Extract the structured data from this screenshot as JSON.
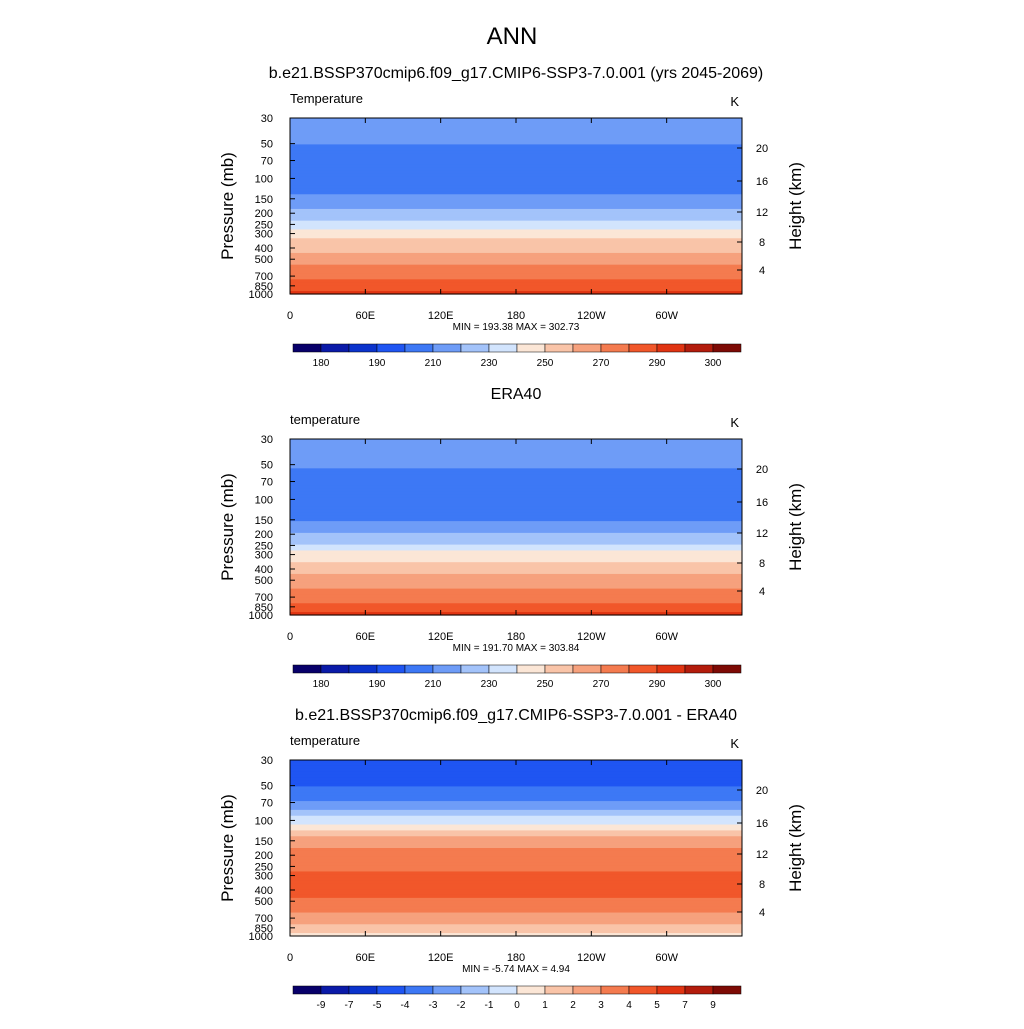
{
  "figure_title": "ANN",
  "panels": [
    {
      "title": "b.e21.BSSP370cmip6.f09_g17.CMIP6-SSP3-7.0.001 (yrs 2045-2069)",
      "left_label": "Temperature",
      "units": "K",
      "ylabel_left": "Pressure (mb)",
      "ylabel_right": "Height (km)",
      "x_ticks": [
        "0",
        "60E",
        "120E",
        "180",
        "120W",
        "60W"
      ],
      "y_ticks": [
        "30",
        "50",
        "70",
        "100",
        "150",
        "200",
        "250",
        "300",
        "400",
        "500",
        "700",
        "850",
        "1000"
      ],
      "height_ticks": [
        "20",
        "16",
        "12",
        "8",
        "4"
      ],
      "stats": "MIN = 193.38  MAX = 302.73",
      "colorbar_labels": [
        "180",
        "190",
        "210",
        "230",
        "250",
        "270",
        "290",
        "300"
      ]
    },
    {
      "title": "ERA40",
      "left_label": "temperature",
      "units": "K",
      "ylabel_left": "Pressure (mb)",
      "ylabel_right": "Height (km)",
      "x_ticks": [
        "0",
        "60E",
        "120E",
        "180",
        "120W",
        "60W"
      ],
      "y_ticks": [
        "30",
        "50",
        "70",
        "100",
        "150",
        "200",
        "250",
        "300",
        "400",
        "500",
        "700",
        "850",
        "1000"
      ],
      "height_ticks": [
        "20",
        "16",
        "12",
        "8",
        "4"
      ],
      "stats": "MIN = 191.70  MAX = 303.84",
      "colorbar_labels": [
        "180",
        "190",
        "210",
        "230",
        "250",
        "270",
        "290",
        "300"
      ]
    },
    {
      "title": "b.e21.BSSP370cmip6.f09_g17.CMIP6-SSP3-7.0.001 - ERA40",
      "left_label": "temperature",
      "units": "K",
      "ylabel_left": "Pressure (mb)",
      "ylabel_right": "Height (km)",
      "x_ticks": [
        "0",
        "60E",
        "120E",
        "180",
        "120W",
        "60W"
      ],
      "y_ticks": [
        "30",
        "50",
        "70",
        "100",
        "150",
        "200",
        "250",
        "300",
        "400",
        "500",
        "700",
        "850",
        "1000"
      ],
      "height_ticks": [
        "20",
        "16",
        "12",
        "8",
        "4"
      ],
      "stats": "MIN = -5.74  MAX =   4.94",
      "colorbar_labels": [
        "-9",
        "-7",
        "-5",
        "-4",
        "-3",
        "-2",
        "-1",
        "0",
        "1",
        "2",
        "3",
        "4",
        "5",
        "7",
        "9"
      ]
    }
  ],
  "colormap": [
    "#08006a",
    "#0a1aa8",
    "#0b33cc",
    "#1f55f2",
    "#3d78f5",
    "#6e9cf7",
    "#a3c3fa",
    "#d2e4fd",
    "#fbe6d6",
    "#f9c4a8",
    "#f6a17d",
    "#f47b4f",
    "#f1572a",
    "#e03412",
    "#b31c0c",
    "#7d0a05"
  ],
  "chart_data": [
    {
      "type": "heatmap",
      "title": "b.e21.BSSP370cmip6.f09_g17.CMIP6-SSP3-7.0.001 (yrs 2045-2069)",
      "variable": "Temperature",
      "units": "K",
      "xlabel": "",
      "ylabel": "Pressure (mb)",
      "ylabel_right": "Height (km)",
      "x_range": [
        "0",
        "360"
      ],
      "y_range_mb": [
        30,
        1000
      ],
      "y_scale": "log",
      "levels": [
        180,
        185,
        190,
        200,
        210,
        220,
        230,
        240,
        250,
        260,
        270,
        280,
        290,
        295,
        300
      ],
      "profile_mb": [
        30,
        50,
        70,
        100,
        150,
        200,
        250,
        300,
        400,
        500,
        700,
        850,
        1000
      ],
      "profile_value": [
        218,
        210,
        204,
        202,
        212,
        222,
        234,
        246,
        256,
        266,
        278,
        284,
        293
      ],
      "min": 193.38,
      "max": 302.73
    },
    {
      "type": "heatmap",
      "title": "ERA40",
      "variable": "temperature",
      "units": "K",
      "xlabel": "",
      "ylabel": "Pressure (mb)",
      "ylabel_right": "Height (km)",
      "x_range": [
        "0",
        "360"
      ],
      "y_range_mb": [
        30,
        1000
      ],
      "y_scale": "log",
      "levels": [
        180,
        185,
        190,
        200,
        210,
        220,
        230,
        240,
        250,
        260,
        270,
        280,
        290,
        295,
        300
      ],
      "profile_mb": [
        30,
        50,
        70,
        100,
        150,
        200,
        250,
        300,
        400,
        500,
        700,
        850,
        1000
      ],
      "profile_value": [
        220,
        212,
        205,
        202,
        210,
        220,
        232,
        244,
        255,
        264,
        276,
        284,
        292
      ],
      "min": 191.7,
      "max": 303.84
    },
    {
      "type": "heatmap",
      "title": "b.e21.BSSP370cmip6.f09_g17.CMIP6-SSP3-7.0.001 - ERA40",
      "variable": "temperature",
      "units": "K",
      "xlabel": "",
      "ylabel": "Pressure (mb)",
      "ylabel_right": "Height (km)",
      "x_range": [
        "0",
        "360"
      ],
      "y_range_mb": [
        30,
        1000
      ],
      "y_scale": "log",
      "levels": [
        -9,
        -7,
        -5,
        -4,
        -3,
        -2,
        -1,
        0,
        1,
        2,
        3,
        4,
        5,
        7,
        9
      ],
      "profile_mb": [
        30,
        50,
        70,
        100,
        150,
        200,
        250,
        300,
        400,
        500,
        700,
        850,
        1000
      ],
      "profile_value": [
        -4.5,
        -4.0,
        -3.0,
        -0.5,
        2.5,
        3.5,
        3.6,
        4.2,
        4.4,
        3.8,
        2.5,
        1.5,
        0.5
      ],
      "min": -5.74,
      "max": 4.94
    }
  ]
}
